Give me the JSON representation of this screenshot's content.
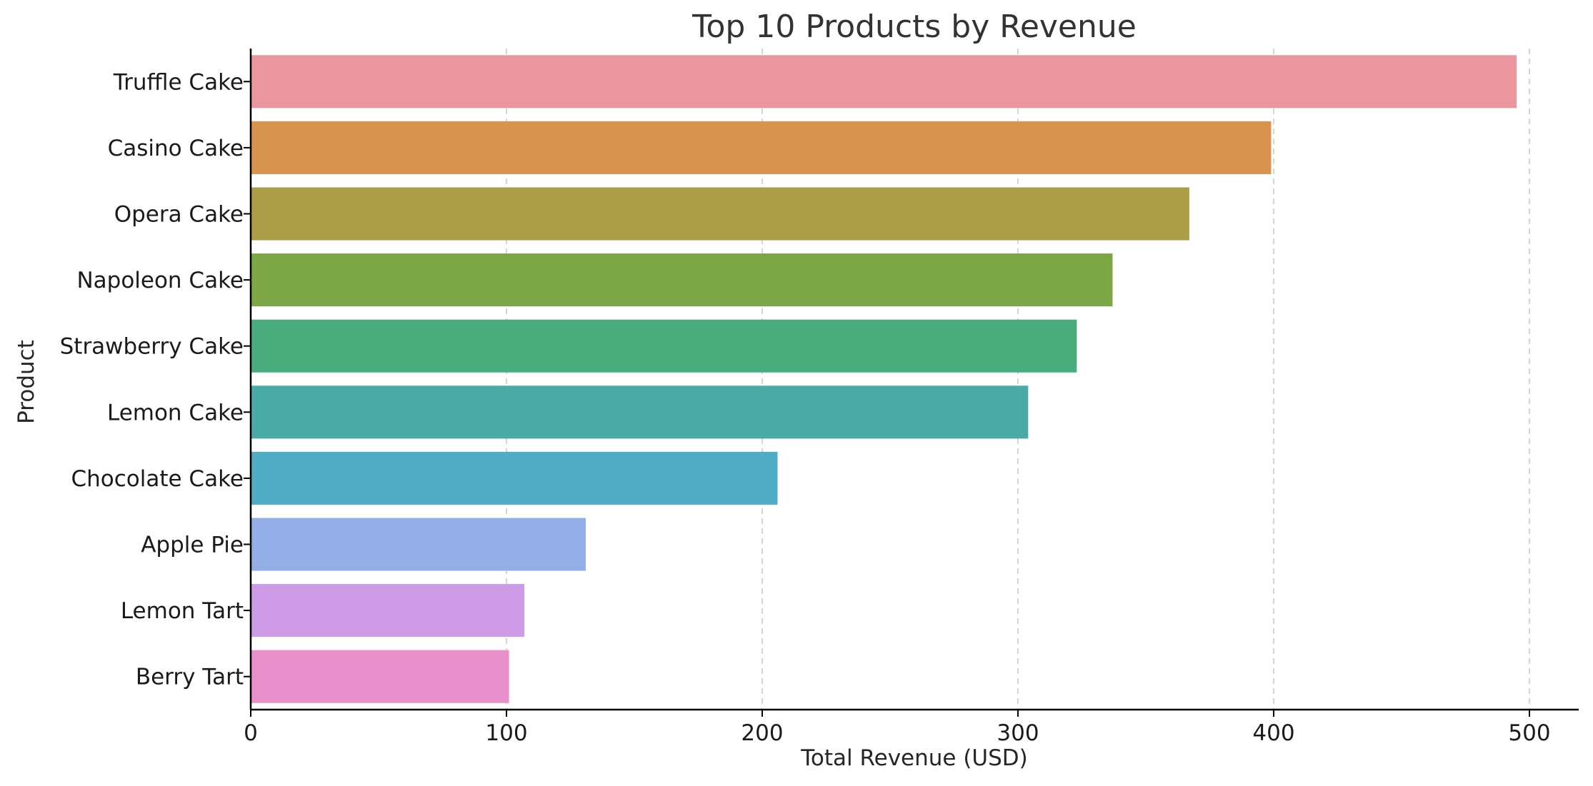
{
  "chart_data": {
    "type": "bar",
    "orientation": "horizontal",
    "title": "Top 10 Products by Revenue",
    "xlabel": "Total Revenue (USD)",
    "ylabel": "Product",
    "xlim": [
      0,
      520
    ],
    "xticks": [
      0,
      100,
      200,
      300,
      400,
      500
    ],
    "grid": "x-dashed",
    "categories": [
      "Truffle Cake",
      "Casino Cake",
      "Opera Cake",
      "Napoleon Cake",
      "Strawberry Cake",
      "Lemon Cake",
      "Chocolate Cake",
      "Apple Pie",
      "Lemon Tart",
      "Berry Tart"
    ],
    "values": [
      495,
      399,
      367,
      337,
      323,
      304,
      206,
      131,
      107,
      101
    ],
    "colors": [
      "#ec96a0",
      "#d8934f",
      "#ac9d47",
      "#7da746",
      "#4aad7d",
      "#4aaaa6",
      "#50abc5",
      "#94aee7",
      "#ce9be7",
      "#e98fcc"
    ]
  }
}
